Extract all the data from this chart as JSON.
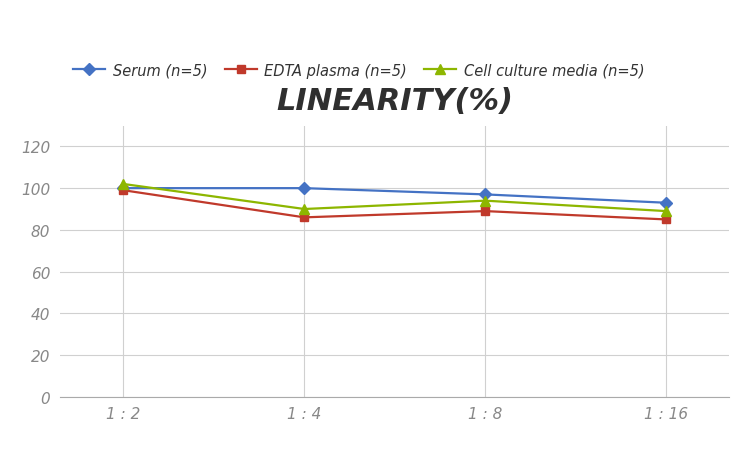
{
  "title": "LINEARITY(%)",
  "x_labels": [
    "1 : 2",
    "1 : 4",
    "1 : 8",
    "1 : 16"
  ],
  "x_positions": [
    0,
    1,
    2,
    3
  ],
  "series": [
    {
      "label": "Serum (n=5)",
      "values": [
        100,
        100,
        97,
        93
      ],
      "color": "#4472C4",
      "marker": "D",
      "marker_size": 6
    },
    {
      "label": "EDTA plasma (n=5)",
      "values": [
        99,
        86,
        89,
        85
      ],
      "color": "#C0392B",
      "marker": "s",
      "marker_size": 6
    },
    {
      "label": "Cell culture media (n=5)",
      "values": [
        102,
        90,
        94,
        89
      ],
      "color": "#8DB600",
      "marker": "^",
      "marker_size": 7
    }
  ],
  "ylim": [
    0,
    130
  ],
  "yticks": [
    0,
    20,
    40,
    60,
    80,
    100,
    120
  ],
  "background_color": "#ffffff",
  "grid_color": "#d0d0d0",
  "title_fontsize": 22,
  "legend_fontsize": 10.5,
  "tick_fontsize": 11,
  "tick_color": "#888888"
}
